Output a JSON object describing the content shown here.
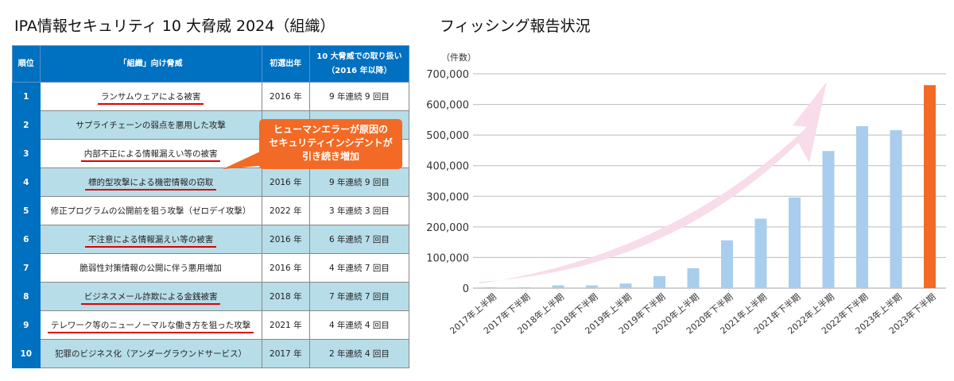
{
  "left_title": "IPA情報セキュリティ 10 大脅威 2024（組織）",
  "right_title": "フィッシング報告状況",
  "table": {
    "headers": [
      "順位",
      "「組織」向け脅威",
      "初選出年",
      "10 大脅威での取り扱い",
      "（2016 年以降）"
    ],
    "rows": [
      {
        "rank": "1",
        "threat": "ランサムウェアによる被害",
        "year": "2016 年",
        "count": "9 年連続 9 回目",
        "underlined": true
      },
      {
        "rank": "2",
        "threat": "サプライチェーンの弱点を悪用した攻撃",
        "year": "",
        "count": "",
        "underlined": false
      },
      {
        "rank": "3",
        "threat": "内部不正による情報漏えい等の被害",
        "year": "",
        "count": "",
        "underlined": true
      },
      {
        "rank": "4",
        "threat": "標的型攻撃による機密情報の窃取",
        "year": "2016 年",
        "count": "9 年連続 9 回目",
        "underlined": true
      },
      {
        "rank": "5",
        "threat": "修正プログラムの公開前を狙う攻撃（ゼロデイ攻撃）",
        "year": "2022 年",
        "count": "3 年連続 3 回目",
        "underlined": false
      },
      {
        "rank": "6",
        "threat": "不注意による情報漏えい等の被害",
        "year": "2016 年",
        "count": "6 年連続 7 回目",
        "underlined": true
      },
      {
        "rank": "7",
        "threat": "脆弱性対策情報の公開に伴う悪用増加",
        "year": "2016 年",
        "count": "4 年連続 7 回目",
        "underlined": false
      },
      {
        "rank": "8",
        "threat": "ビジネスメール詐欺による金銭被害",
        "year": "2018 年",
        "count": "7 年連続 7 回目",
        "underlined": true
      },
      {
        "rank": "9",
        "threat": "テレワーク等のニューノーマルな働き方を狙った攻撃",
        "year": "2021 年",
        "count": "4 年連続 4 回目",
        "underlined": true
      },
      {
        "rank": "10",
        "threat": "犯罪のビジネス化（アンダーグラウンドサービス）",
        "year": "2017 年",
        "count": "2 年連続 4 回目",
        "underlined": false
      }
    ]
  },
  "callout": [
    "ヒューマンエラーが原因の",
    "セキュリティインシデントが",
    "引き続き増加"
  ],
  "colors": {
    "header": "#0070c0",
    "alt_row": "#b7dde8",
    "underline": "#e00000",
    "callout": "#f26a25",
    "bar": "#a9cdec",
    "bar_highlight": "#f26a25",
    "arrow": "#f8dcea"
  },
  "chart_data": {
    "type": "bar",
    "title": "フィッシング報告状況",
    "ylabel": "（件数）",
    "ylim": [
      0,
      700000
    ],
    "yticks": [
      "0",
      "100,000",
      "200,000",
      "300,000",
      "400,000",
      "500,000",
      "600,000",
      "700,000"
    ],
    "grid": true,
    "categories": [
      "2017年上半期",
      "2017年下半期",
      "2018年上半期",
      "2018年下半期",
      "2019年上半期",
      "2019年下半期",
      "2020年上半期",
      "2020年下半期",
      "2021年上半期",
      "2021年下半期",
      "2022年上半期",
      "2022年下半期",
      "2023年上半期",
      "2023年下半期"
    ],
    "values": [
      3000,
      3000,
      9000,
      9000,
      15000,
      39000,
      65000,
      156000,
      227000,
      296000,
      448000,
      529000,
      516000,
      663000
    ],
    "highlight_index": 13,
    "annotation": "upward trend arrow"
  }
}
